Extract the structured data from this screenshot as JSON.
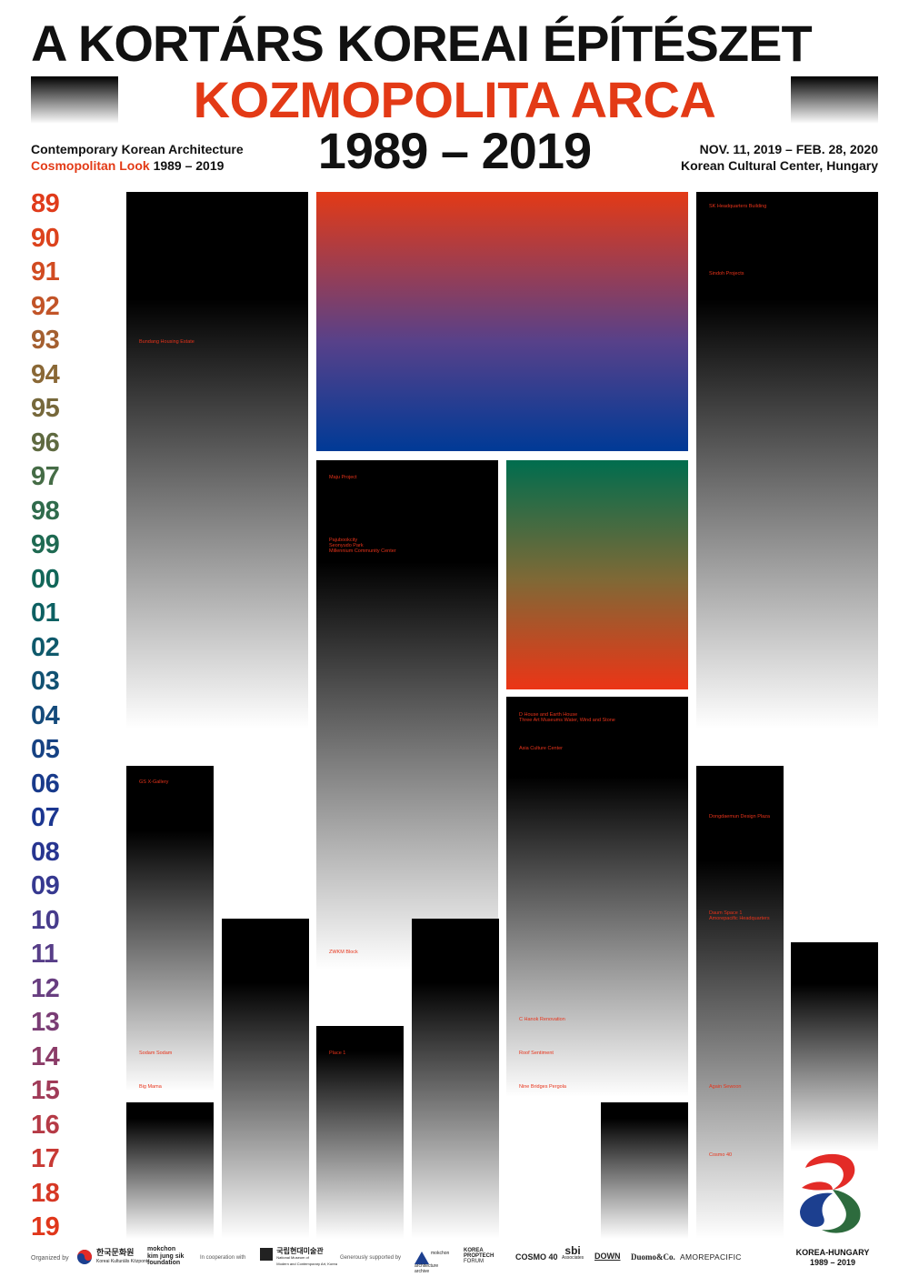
{
  "header": {
    "title_line1": "A KORTÁRS KOREAI ÉPÍTÉSZET",
    "title_line2": "KOZMOPOLITA ARCA",
    "title_line3": "1989 – 2019",
    "subtitle_en_line1": "Contemporary Korean Architecture",
    "subtitle_en_line2_red": "Cosmopolitan Look",
    "subtitle_en_line2_years": "1989 – 2019",
    "dates": "NOV. 11, 2019 – FEB. 28, 2020",
    "venue": "Korean Cultural Center, Hungary"
  },
  "years": [
    {
      "label": "89",
      "color": "#e03b1b"
    },
    {
      "label": "90",
      "color": "#dc421c"
    },
    {
      "label": "91",
      "color": "#d14b21"
    },
    {
      "label": "92",
      "color": "#c25428"
    },
    {
      "label": "93",
      "color": "#a45f30"
    },
    {
      "label": "94",
      "color": "#8a6836"
    },
    {
      "label": "95",
      "color": "#76683b"
    },
    {
      "label": "96",
      "color": "#5f6a40"
    },
    {
      "label": "97",
      "color": "#456c46"
    },
    {
      "label": "98",
      "color": "#306b4c"
    },
    {
      "label": "99",
      "color": "#1f6a52"
    },
    {
      "label": "00",
      "color": "#116658"
    },
    {
      "label": "01",
      "color": "#0d6062"
    },
    {
      "label": "02",
      "color": "#0f596b"
    },
    {
      "label": "03",
      "color": "#115172"
    },
    {
      "label": "04",
      "color": "#144a7b"
    },
    {
      "label": "05",
      "color": "#164283"
    },
    {
      "label": "06",
      "color": "#183a8b"
    },
    {
      "label": "07",
      "color": "#1b3690"
    },
    {
      "label": "08",
      "color": "#273590"
    },
    {
      "label": "09",
      "color": "#363990"
    },
    {
      "label": "10",
      "color": "#473c8c"
    },
    {
      "label": "11",
      "color": "#573e88"
    },
    {
      "label": "12",
      "color": "#683e80"
    },
    {
      "label": "13",
      "color": "#7a3d75"
    },
    {
      "label": "14",
      "color": "#8b3c68"
    },
    {
      "label": "15",
      "color": "#a03b58"
    },
    {
      "label": "16",
      "color": "#b53a46"
    },
    {
      "label": "17",
      "color": "#c83934"
    },
    {
      "label": "18",
      "color": "#d63825"
    },
    {
      "label": "19",
      "color": "#e0371b"
    }
  ],
  "projects": {
    "bundang": "Bundang Housing Estate",
    "gs_x_gallery": "GS X-Gallery",
    "sodam": "Sodam Sodam",
    "big_mama": "Big Mama",
    "maju": "Maju Project",
    "paju": "Pajubookcity",
    "seonyudo": "Seonyudo Park",
    "millennium": "Millennium Community Center",
    "zwkm": "ZWKM Block",
    "place1": "Place 1",
    "dhouse": "D House and Earth House",
    "three_art": "Three Art Museums Water, Wind and Stone",
    "asia_culture": "Asia Culture Center",
    "c_hanok": "C Hanok Renovation",
    "roof": "Roof Sentiment",
    "nine_bridges": "Nine Bridges Pergola",
    "sk_hq": "SK Headquarters Building",
    "sindoh": "Sindoh Projects",
    "ddp": "Dongdaemun Design Plaza",
    "daum": "Daum Space 1",
    "amorepacific_hq": "Amorepacific Headquarters",
    "again_sewoon": "Again Sewoon",
    "cosmo40": "Cosmo 40"
  },
  "footer": {
    "organized_by": "Organized by",
    "org1_line1": "한국문화원",
    "org1_line2": "Koreai Kulturális Központ",
    "org2_line1": "mokchon",
    "org2_line2": "kim jung sik",
    "org2_line3": "foundation",
    "cooperation": "In cooperation with",
    "mmca_line1": "국립현대미술관",
    "mmca_line2": "National Museum of",
    "mmca_line3": "Modern and Contemporary Art, Korea",
    "supported": "Generously supported by",
    "sponsor1": "mokchon architecture archive",
    "sponsor2_line1": "KOREA",
    "sponsor2_line2": "PROPTECH",
    "sponsor2_line3": "FORUM",
    "sponsor3": "COSMO 40",
    "sponsor4_line1": "sbi",
    "sponsor4_line2": "Associates",
    "sponsor5": "DOWN",
    "sponsor6": "Duomo&Co.",
    "sponsor7": "AMOREPACIFIC",
    "emblem_line1": "KOREA-HUNGARY",
    "emblem_line2": "1989 – 2019"
  },
  "colors": {
    "accent_red": "#e33a16",
    "deep_blue": "#003a96",
    "deep_green": "#006d4e"
  }
}
